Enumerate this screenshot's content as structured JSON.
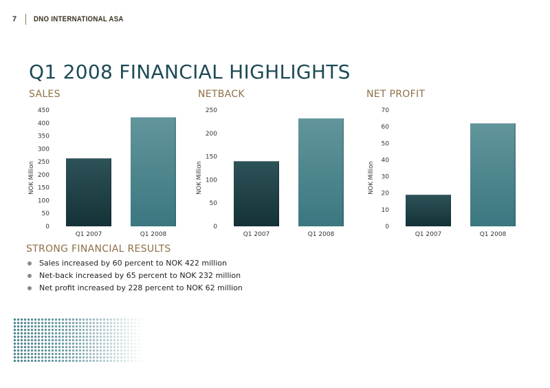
{
  "header": {
    "page_number": "7",
    "company": "DNO INTERNATIONAL ASA"
  },
  "title": "Q1 2008 FINANCIAL HIGHLIGHTS",
  "chart_data": [
    {
      "type": "bar",
      "title": "SALES",
      "ylabel": "NOK Million",
      "categories": [
        "Q1 2007",
        "Q1 2008"
      ],
      "values": [
        263,
        422
      ],
      "ylim": [
        0,
        450
      ],
      "yticks": [
        0,
        50,
        100,
        150,
        200,
        250,
        300,
        350,
        400,
        450
      ],
      "grid": false
    },
    {
      "type": "bar",
      "title": "NETBACK",
      "ylabel": "NOK Million",
      "categories": [
        "Q1 2007",
        "Q1 2008"
      ],
      "values": [
        140,
        232
      ],
      "ylim": [
        0,
        250
      ],
      "yticks": [
        0,
        50,
        100,
        150,
        200,
        250
      ],
      "grid": false
    },
    {
      "type": "bar",
      "title": "NET PROFIT",
      "ylabel": "NOK Million",
      "categories": [
        "Q1 2007",
        "Q1 2008"
      ],
      "values": [
        19,
        62
      ],
      "ylim": [
        0,
        70
      ],
      "yticks": [
        0,
        10,
        20,
        30,
        40,
        50,
        60,
        70
      ],
      "grid": false
    }
  ],
  "results": {
    "title": "STRONG FINANCIAL RESULTS",
    "items": [
      "Sales increased by 60 percent to NOK 422 million",
      "Net-back increased by 65 percent to NOK 232 million",
      "Net profit increased by 228 percent to NOK 62 million"
    ]
  },
  "colors": {
    "bar_2007_top": "#2d5258",
    "bar_2007_bottom": "#143237",
    "bar_2008_top": "#62959c",
    "bar_2008_bottom": "#3b7780",
    "title": "#1d4a55",
    "subtitle": "#8c7046"
  }
}
